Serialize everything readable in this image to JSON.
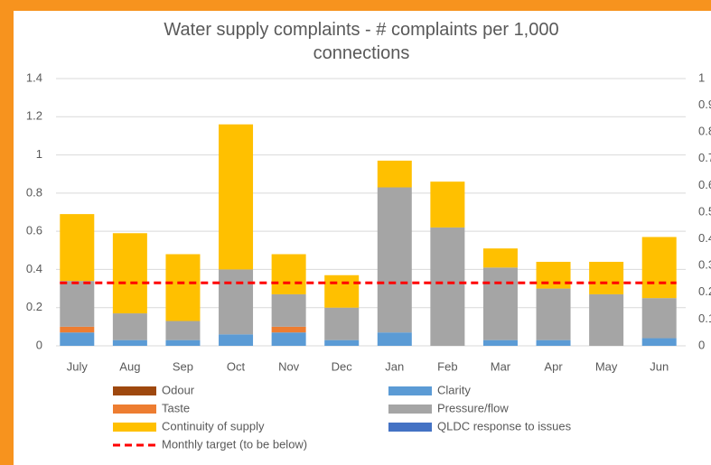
{
  "chart_data": {
    "type": "stacked_bar",
    "title": "Water supply complaints - # complaints per 1,000 connections",
    "categories": [
      "July",
      "Aug",
      "Sep",
      "Oct",
      "Nov",
      "Dec",
      "Jan",
      "Feb",
      "Mar",
      "Apr",
      "May",
      "Jun"
    ],
    "series": [
      {
        "name": "Odour",
        "color": "#9e480e",
        "values": [
          0,
          0,
          0,
          0,
          0,
          0,
          0,
          0,
          0,
          0,
          0,
          0
        ]
      },
      {
        "name": "Clarity",
        "color": "#5b9bd5",
        "values": [
          0.07,
          0.03,
          0.03,
          0.06,
          0.07,
          0.03,
          0.07,
          0,
          0.03,
          0.03,
          0,
          0.04
        ]
      },
      {
        "name": "Taste",
        "color": "#ed7d31",
        "values": [
          0.03,
          0,
          0,
          0,
          0.03,
          0,
          0,
          0,
          0,
          0,
          0,
          0
        ]
      },
      {
        "name": "Pressure/flow",
        "color": "#a5a5a5",
        "values": [
          0.24,
          0.14,
          0.1,
          0.34,
          0.17,
          0.17,
          0.76,
          0.62,
          0.38,
          0.27,
          0.27,
          0.21
        ]
      },
      {
        "name": "Continuity of supply",
        "color": "#ffc000",
        "values": [
          0.35,
          0.42,
          0.35,
          0.76,
          0.21,
          0.17,
          0.14,
          0.24,
          0.1,
          0.14,
          0.17,
          0.32
        ]
      },
      {
        "name": "QLDC response to issues",
        "color": "#4472c4",
        "values": [
          0,
          0,
          0,
          0,
          0,
          0,
          0,
          0,
          0,
          0,
          0,
          0
        ]
      },
      {
        "name": "Monthly target (to be below)",
        "color": "#ff0000",
        "type": "line",
        "dashed": true,
        "values": [
          0.33,
          0.33,
          0.33,
          0.33,
          0.33,
          0.33,
          0.33,
          0.33,
          0.33,
          0.33,
          0.33,
          0.33
        ]
      }
    ],
    "ylim": [
      0,
      1.4
    ],
    "yticks": [
      0,
      0.2,
      0.4,
      0.6,
      0.8,
      1,
      1.2,
      1.4
    ],
    "y2lim": [
      0,
      1
    ],
    "y2ticks": [
      0,
      0.1,
      0.2,
      0.3,
      0.4,
      0.5,
      0.6,
      0.7,
      0.8,
      0.9,
      1
    ],
    "grid": true,
    "legend": "bottom"
  }
}
